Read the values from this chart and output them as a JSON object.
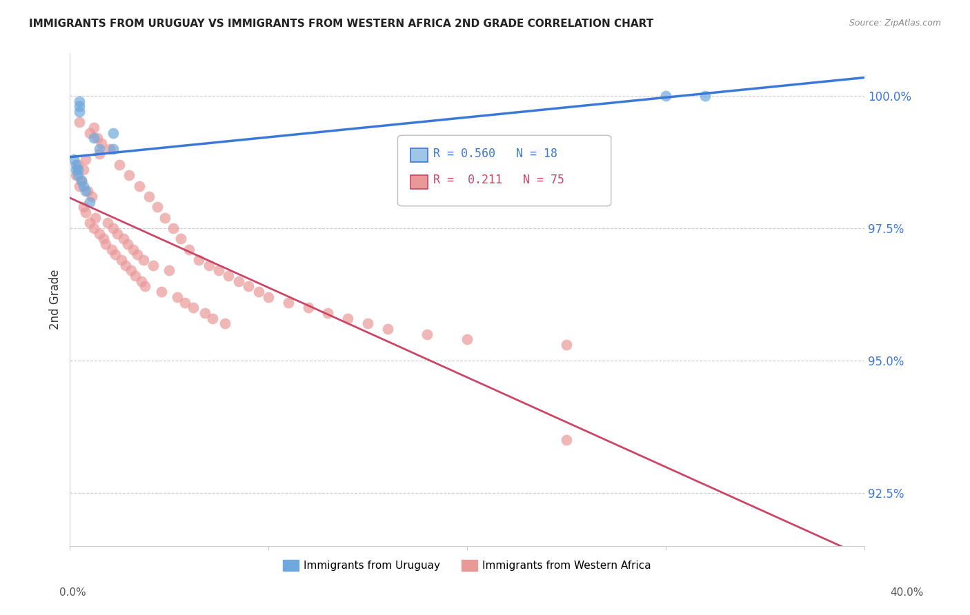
{
  "title": "IMMIGRANTS FROM URUGUAY VS IMMIGRANTS FROM WESTERN AFRICA 2ND GRADE CORRELATION CHART",
  "source": "Source: ZipAtlas.com",
  "ylabel": "2nd Grade",
  "yticks": [
    92.5,
    95.0,
    97.5,
    100.0
  ],
  "ytick_labels": [
    "92.5%",
    "95.0%",
    "97.5%",
    "100.0%"
  ],
  "xmin": 0.0,
  "xmax": 0.4,
  "ymin": 91.5,
  "ymax": 100.8,
  "uruguay_color": "#6fa8dc",
  "western_africa_color": "#ea9999",
  "uruguay_line_color": "#3c78d8",
  "western_africa_line_color": "#cc4466",
  "legend_R_uruguay": "0.560",
  "legend_N_uruguay": "18",
  "legend_R_wa": "0.211",
  "legend_N_wa": "75",
  "uruguay_x": [
    0.002,
    0.003,
    0.003,
    0.004,
    0.004,
    0.005,
    0.005,
    0.005,
    0.006,
    0.007,
    0.008,
    0.01,
    0.012,
    0.015,
    0.022,
    0.022,
    0.3,
    0.32
  ],
  "uruguay_y": [
    98.8,
    98.6,
    98.7,
    98.5,
    98.6,
    99.8,
    99.7,
    99.9,
    98.4,
    98.3,
    98.2,
    98.0,
    99.2,
    99.0,
    99.3,
    99.0,
    100.0,
    100.0
  ],
  "wa_x": [
    0.003,
    0.004,
    0.005,
    0.005,
    0.006,
    0.007,
    0.007,
    0.008,
    0.008,
    0.009,
    0.01,
    0.01,
    0.011,
    0.012,
    0.012,
    0.013,
    0.014,
    0.015,
    0.015,
    0.016,
    0.017,
    0.018,
    0.019,
    0.02,
    0.021,
    0.022,
    0.023,
    0.024,
    0.025,
    0.026,
    0.027,
    0.028,
    0.029,
    0.03,
    0.031,
    0.032,
    0.033,
    0.034,
    0.035,
    0.036,
    0.037,
    0.038,
    0.04,
    0.042,
    0.044,
    0.046,
    0.048,
    0.05,
    0.052,
    0.054,
    0.056,
    0.058,
    0.06,
    0.062,
    0.065,
    0.068,
    0.07,
    0.072,
    0.075,
    0.078,
    0.08,
    0.085,
    0.09,
    0.095,
    0.1,
    0.11,
    0.12,
    0.13,
    0.14,
    0.15,
    0.16,
    0.18,
    0.2,
    0.25,
    0.25
  ],
  "wa_y": [
    98.5,
    98.7,
    99.5,
    98.3,
    98.4,
    98.6,
    97.9,
    98.8,
    97.8,
    98.2,
    99.3,
    97.6,
    98.1,
    99.4,
    97.5,
    97.7,
    99.2,
    98.9,
    97.4,
    99.1,
    97.3,
    97.2,
    97.6,
    99.0,
    97.1,
    97.5,
    97.0,
    97.4,
    98.7,
    96.9,
    97.3,
    96.8,
    97.2,
    98.5,
    96.7,
    97.1,
    96.6,
    97.0,
    98.3,
    96.5,
    96.9,
    96.4,
    98.1,
    96.8,
    97.9,
    96.3,
    97.7,
    96.7,
    97.5,
    96.2,
    97.3,
    96.1,
    97.1,
    96.0,
    96.9,
    95.9,
    96.8,
    95.8,
    96.7,
    95.7,
    96.6,
    96.5,
    96.4,
    96.3,
    96.2,
    96.1,
    96.0,
    95.9,
    95.8,
    95.7,
    95.6,
    95.5,
    95.4,
    95.3,
    93.5
  ]
}
